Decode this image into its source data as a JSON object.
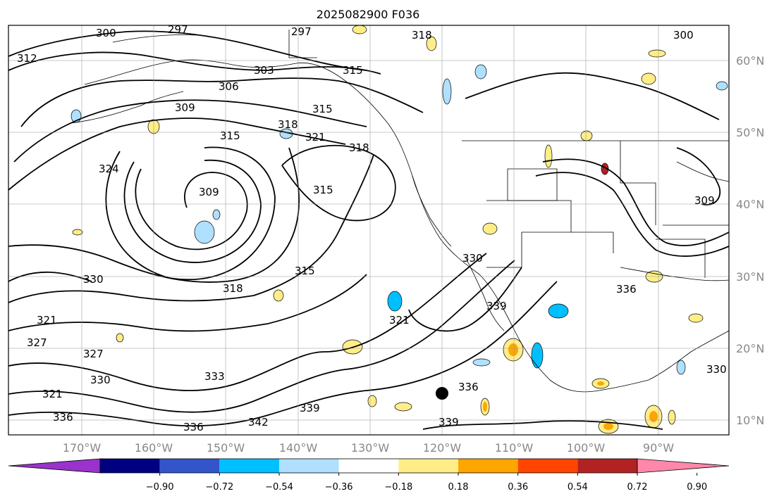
{
  "title": "2025082900 F036",
  "map": {
    "lon_labels": [
      "170°W",
      "160°W",
      "150°W",
      "140°W",
      "130°W",
      "120°W",
      "110°W",
      "100°W",
      "90°W"
    ],
    "lat_labels": [
      "60°N",
      "50°N",
      "40°N",
      "30°N",
      "20°N",
      "10°N"
    ],
    "contour_labels": [
      "300",
      "297",
      "297",
      "318",
      "300",
      "312",
      "303",
      "315",
      "306",
      "309",
      "315",
      "318",
      "321",
      "318",
      "315",
      "324",
      "315",
      "309",
      "330",
      "321",
      "327",
      "327",
      "315",
      "318",
      "321",
      "330",
      "339",
      "336",
      "336",
      "339",
      "342",
      "336",
      "339",
      "333",
      "330",
      "309",
      "321",
      "330",
      "336"
    ],
    "marker": "black-dot"
  },
  "colorbar": {
    "colors": [
      "#9933cc",
      "#000080",
      "#3355cc",
      "#00bfff",
      "#b0e0ff",
      "#ffffff",
      "#ffee88",
      "#ffa500",
      "#ff4500",
      "#b22222",
      "#ff88aa"
    ],
    "tick_labels": [
      "−0.90",
      "−0.72",
      "−0.54",
      "−0.36",
      "−0.18",
      "0.18",
      "0.36",
      "0.54",
      "0.72",
      "0.90"
    ]
  }
}
